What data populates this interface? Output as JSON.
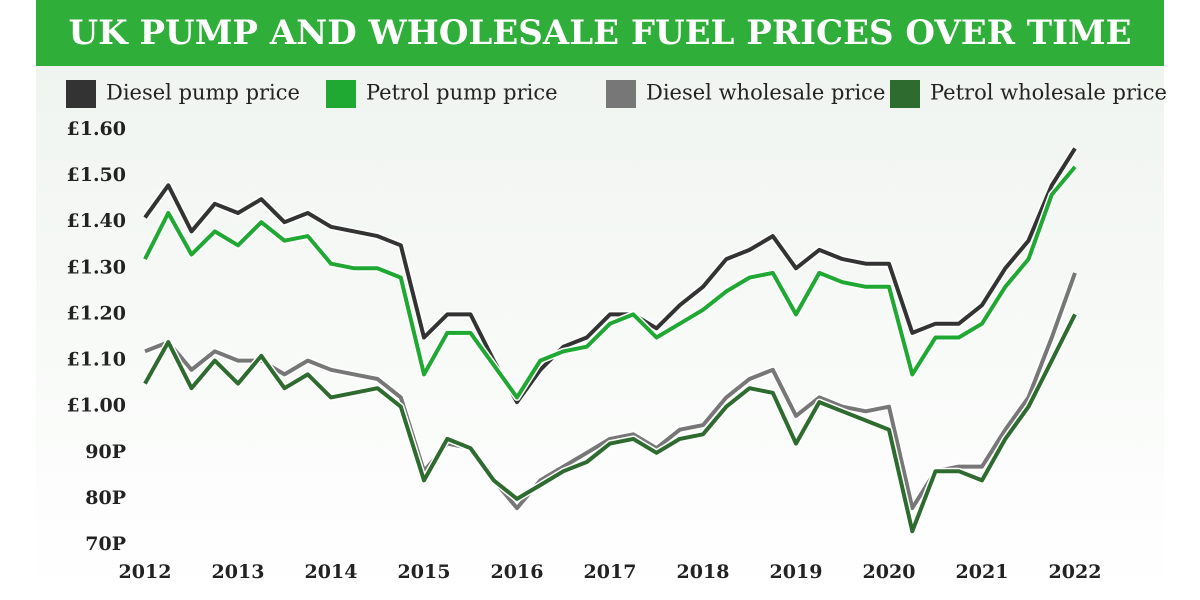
{
  "chart_data": {
    "type": "line",
    "title": "UK PUMP AND WHOLESALE FUEL PRICES OVER TIME",
    "x": [
      2012,
      2012.25,
      2012.5,
      2012.75,
      2013,
      2013.25,
      2013.5,
      2013.75,
      2014,
      2014.25,
      2014.5,
      2014.75,
      2015,
      2015.25,
      2015.5,
      2015.75,
      2016,
      2016.25,
      2016.5,
      2016.75,
      2017,
      2017.25,
      2017.5,
      2017.75,
      2018,
      2018.25,
      2018.5,
      2018.75,
      2019,
      2019.25,
      2019.5,
      2019.75,
      2020,
      2020.25,
      2020.5,
      2020.75,
      2021,
      2021.25,
      2021.5,
      2021.75,
      2022
    ],
    "series": [
      {
        "name": "Diesel pump price",
        "color": "#333333",
        "values": [
          1.41,
          1.48,
          1.38,
          1.44,
          1.42,
          1.45,
          1.4,
          1.42,
          1.39,
          1.38,
          1.37,
          1.35,
          1.15,
          1.2,
          1.2,
          1.1,
          1.01,
          1.08,
          1.13,
          1.15,
          1.2,
          1.2,
          1.17,
          1.22,
          1.26,
          1.32,
          1.34,
          1.37,
          1.3,
          1.34,
          1.32,
          1.31,
          1.31,
          1.16,
          1.18,
          1.18,
          1.22,
          1.3,
          1.36,
          1.48,
          1.56
        ]
      },
      {
        "name": "Petrol pump price",
        "color": "#1fa832",
        "values": [
          1.32,
          1.42,
          1.33,
          1.38,
          1.35,
          1.4,
          1.36,
          1.37,
          1.31,
          1.3,
          1.3,
          1.28,
          1.07,
          1.16,
          1.16,
          1.09,
          1.02,
          1.1,
          1.12,
          1.13,
          1.18,
          1.2,
          1.15,
          1.18,
          1.21,
          1.25,
          1.28,
          1.29,
          1.2,
          1.29,
          1.27,
          1.26,
          1.26,
          1.07,
          1.15,
          1.15,
          1.18,
          1.26,
          1.32,
          1.46,
          1.52
        ]
      },
      {
        "name": "Diesel wholesale price",
        "color": "#777777",
        "values": [
          1.12,
          1.14,
          1.08,
          1.12,
          1.1,
          1.1,
          1.07,
          1.1,
          1.08,
          1.07,
          1.06,
          1.02,
          0.86,
          0.92,
          0.91,
          0.84,
          0.78,
          0.84,
          0.87,
          0.9,
          0.93,
          0.94,
          0.91,
          0.95,
          0.96,
          1.02,
          1.06,
          1.08,
          0.98,
          1.02,
          1.0,
          0.99,
          1.0,
          0.78,
          0.86,
          0.87,
          0.87,
          0.95,
          1.02,
          1.15,
          1.29
        ]
      },
      {
        "name": "Petrol wholesale price",
        "color": "#2e6b2e",
        "values": [
          1.05,
          1.14,
          1.04,
          1.1,
          1.05,
          1.11,
          1.04,
          1.07,
          1.02,
          1.03,
          1.04,
          1.0,
          0.84,
          0.93,
          0.91,
          0.84,
          0.8,
          0.83,
          0.86,
          0.88,
          0.92,
          0.93,
          0.9,
          0.93,
          0.94,
          1.0,
          1.04,
          1.03,
          0.92,
          1.01,
          0.99,
          0.97,
          0.95,
          0.73,
          0.86,
          0.86,
          0.84,
          0.93,
          1.0,
          1.1,
          1.2
        ]
      }
    ],
    "xlim": [
      2012,
      2022
    ],
    "xticks": [
      2012,
      2013,
      2014,
      2015,
      2016,
      2017,
      2018,
      2019,
      2020,
      2021,
      2022
    ],
    "ylim": [
      0.7,
      1.6
    ],
    "yticks": [
      {
        "value": 0.7,
        "label": "70P"
      },
      {
        "value": 0.8,
        "label": "80P"
      },
      {
        "value": 0.9,
        "label": "90P"
      },
      {
        "value": 1.0,
        "label": "£1.00"
      },
      {
        "value": 1.1,
        "label": "£1.10"
      },
      {
        "value": 1.2,
        "label": "£1.20"
      },
      {
        "value": 1.3,
        "label": "£1.30"
      },
      {
        "value": 1.4,
        "label": "£1.40"
      },
      {
        "value": 1.5,
        "label": "£1.50"
      },
      {
        "value": 1.6,
        "label": "£1.60"
      }
    ]
  }
}
